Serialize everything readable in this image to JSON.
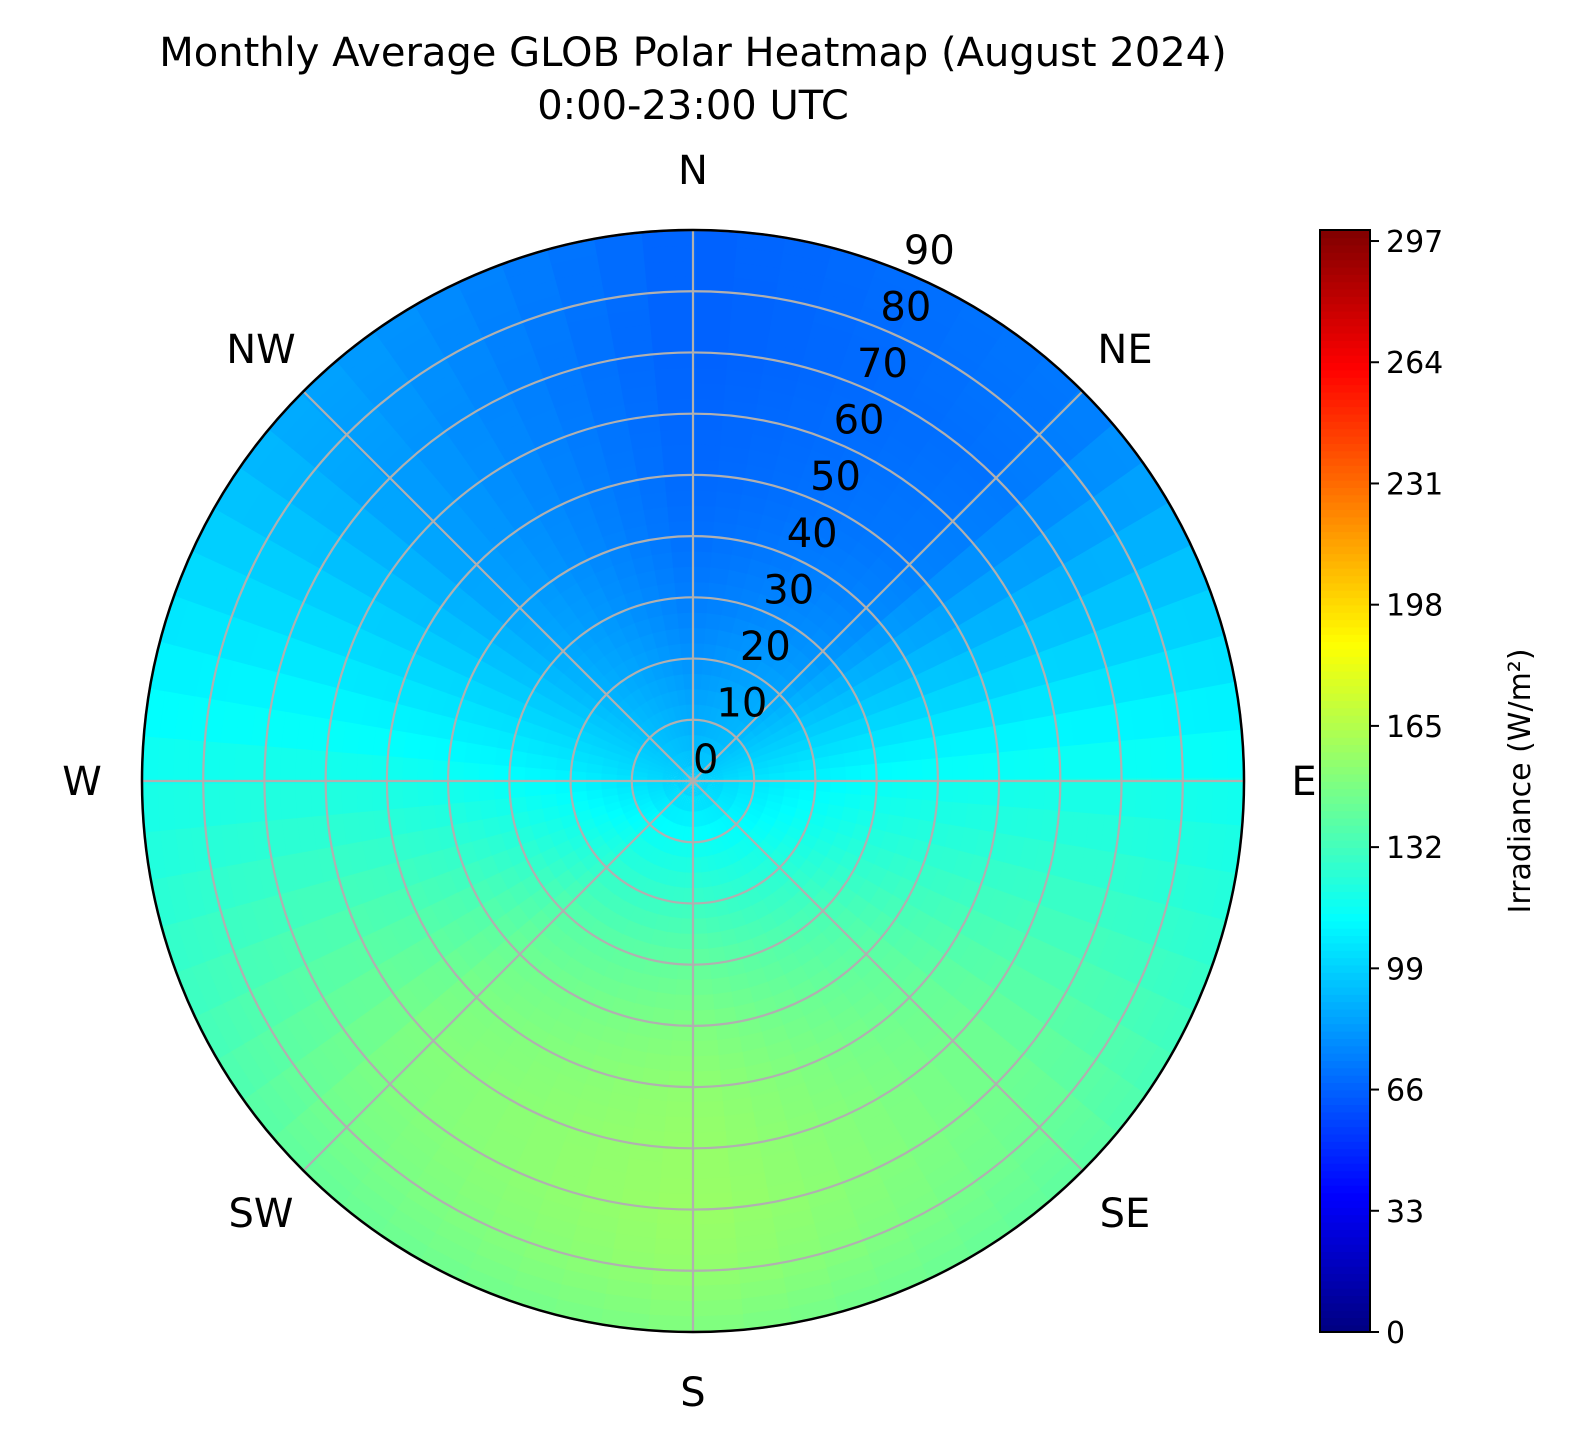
{
  "chart_data": {
    "type": "heatmap",
    "projection": "polar",
    "title": "Monthly Average GLOB Polar Heatmap (August 2024)",
    "subtitle": "0:00-23:00 UTC",
    "compass_labels": [
      "N",
      "NE",
      "E",
      "SE",
      "S",
      "SW",
      "W",
      "NW"
    ],
    "radial_axis": {
      "label": "",
      "range": [
        0,
        90
      ],
      "ticks": [
        0,
        10,
        20,
        30,
        40,
        50,
        60,
        70,
        80,
        90
      ]
    },
    "colorbar": {
      "label": "Irradiance (W/m²)",
      "range": [
        0,
        300
      ],
      "ticks": [
        0,
        33,
        66,
        99,
        132,
        165,
        198,
        231,
        264,
        297
      ],
      "colormap": "jet"
    },
    "grid": true,
    "heatmap": {
      "azimuth_deg": [
        0,
        45,
        90,
        135,
        180,
        225,
        270,
        315
      ],
      "zenith_deg": [
        0,
        10,
        20,
        30,
        40,
        50,
        60,
        70,
        80,
        90
      ],
      "values": [
        [
          98,
          88,
          80,
          74,
          70,
          68,
          67,
          66,
          66,
          66
        ],
        [
          98,
          92,
          86,
          80,
          76,
          73,
          72,
          71,
          72,
          73
        ],
        [
          98,
          105,
          110,
          114,
          116,
          117,
          118,
          118,
          117,
          116
        ],
        [
          98,
          112,
          124,
          134,
          140,
          144,
          146,
          146,
          144,
          140
        ],
        [
          98,
          116,
          130,
          142,
          150,
          155,
          157,
          158,
          156,
          150
        ],
        [
          98,
          114,
          127,
          138,
          145,
          149,
          151,
          150,
          147,
          142
        ],
        [
          98,
          104,
          110,
          114,
          117,
          119,
          120,
          120,
          119,
          118
        ],
        [
          98,
          94,
          90,
          87,
          85,
          84,
          84,
          84,
          85,
          86
        ]
      ]
    }
  }
}
